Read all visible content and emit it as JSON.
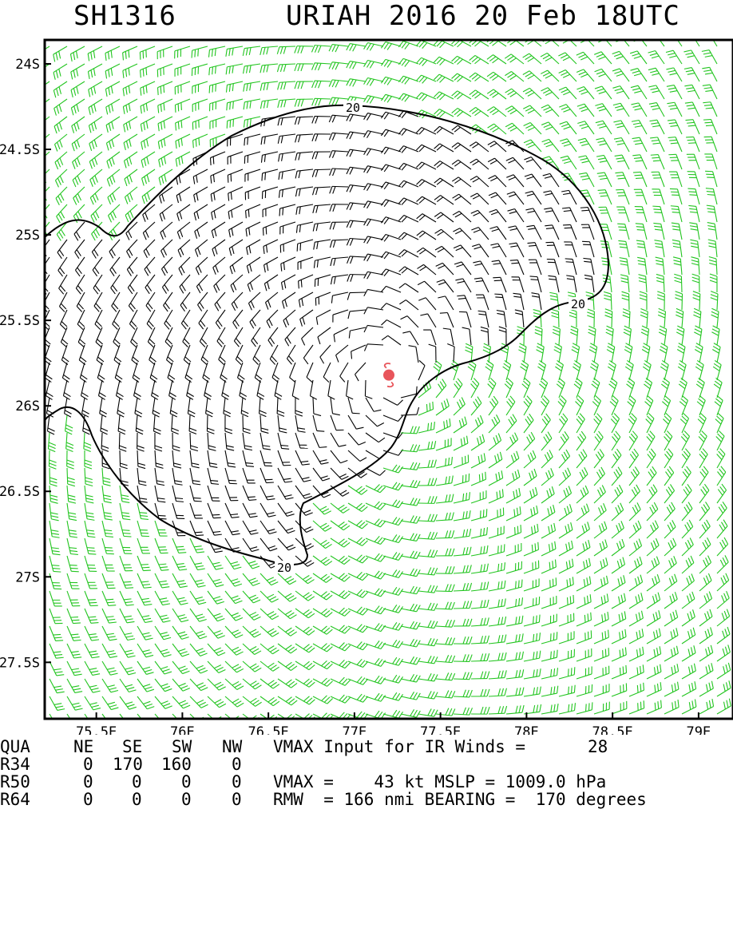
{
  "title": {
    "storm_id": "SH1316",
    "storm_info": "URIAH 2016 20 Feb 18UTC"
  },
  "map": {
    "lat_labels": [
      "24S",
      "24.5S",
      "25S",
      "25.5S",
      "26S",
      "26.5S",
      "27S",
      "27.5S"
    ],
    "lon_labels": [
      "75.5E",
      "76E",
      "76.5E",
      "77E",
      "77.5E",
      "78E",
      "78.5E",
      "79E"
    ],
    "lat_values": [
      -24,
      -24.5,
      -25,
      -25.5,
      -26,
      -26.5,
      -27,
      -27.5
    ],
    "lon_values": [
      75.5,
      76,
      76.5,
      77,
      77.5,
      78,
      78.5,
      79
    ],
    "lat_range": [
      -27.83,
      -23.86
    ],
    "lon_range": [
      75.2,
      79.2
    ],
    "storm_center": {
      "lat": -25.82,
      "lon": 77.2,
      "color": "#e8555b",
      "icon": "tropical-cyclone-symbol"
    },
    "contour_value": "20",
    "contour_labels": [
      "20",
      "20",
      "20"
    ],
    "barb_colors": {
      "inside_contour": "#000000",
      "outside_contour": "#22c51f"
    },
    "colors": {
      "frame": "#000000",
      "contour": "#000000"
    }
  },
  "stats": {
    "header": {
      "label": "QUA",
      "ne": "NE",
      "se": "SE",
      "sw": "SW",
      "nw": "NW",
      "vmax_input_label": "VMAX Input for IR Winds =",
      "vmax_input_value": "28"
    },
    "r34": {
      "label": "R34",
      "ne": "0",
      "se": "170",
      "sw": "160",
      "nw": "0"
    },
    "r50": {
      "label": "R50",
      "ne": "0",
      "se": "0",
      "sw": "0",
      "nw": "0",
      "vmax_text": "VMAX =    43 kt MSLP = 1009.0 hPa"
    },
    "r64": {
      "label": "R64",
      "ne": "0",
      "se": "0",
      "sw": "0",
      "nw": "0",
      "rmw_text": "RMW  = 166 nmi BEARING =  170 degrees"
    }
  }
}
